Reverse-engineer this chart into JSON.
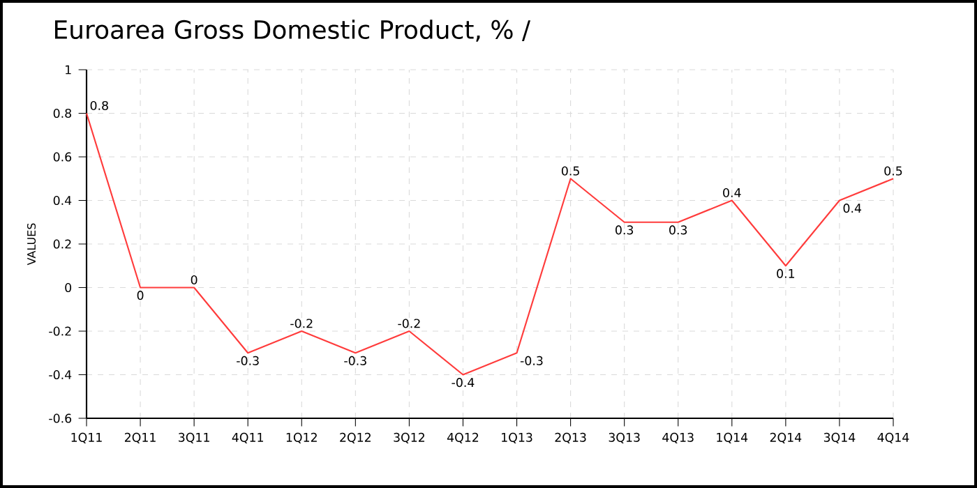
{
  "chart_data": {
    "type": "line",
    "title": "Euroarea Gross Domestic Product, % /",
    "ylabel": "VALUES",
    "categories": [
      "1Q11",
      "2Q11",
      "3Q11",
      "4Q11",
      "1Q12",
      "2Q12",
      "3Q12",
      "4Q12",
      "1Q13",
      "2Q13",
      "3Q13",
      "4Q13",
      "1Q14",
      "2Q14",
      "3Q14",
      "4Q14"
    ],
    "series": [
      {
        "color": "#ff3b3b",
        "values": [
          0.8,
          0,
          0,
          -0.3,
          -0.2,
          -0.3,
          -0.2,
          -0.4,
          -0.3,
          0.5,
          0.3,
          0.3,
          0.4,
          0.1,
          0.4,
          0.5
        ]
      }
    ],
    "ylim": [
      -0.6,
      1
    ],
    "yticks": [
      -0.6,
      -0.4,
      -0.2,
      0,
      0.2,
      0.4,
      0.6,
      0.8,
      1
    ],
    "grid": true,
    "data_labels": true,
    "marker": "none",
    "line_style": "solid"
  }
}
